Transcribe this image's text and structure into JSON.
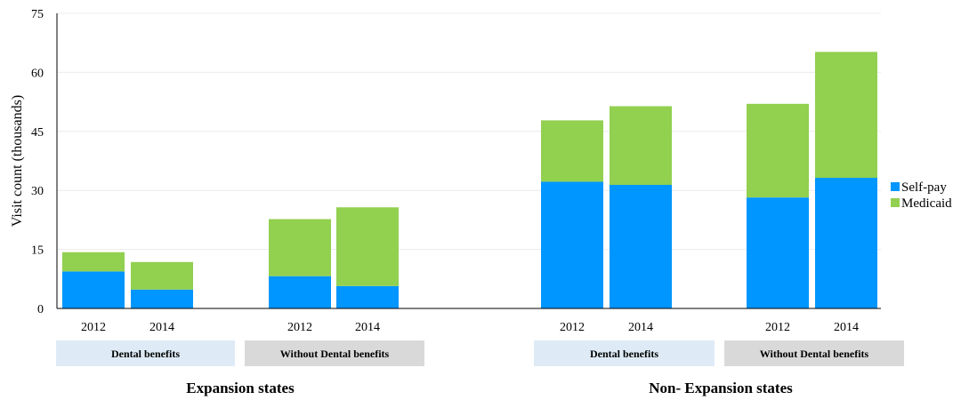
{
  "chart_data": {
    "type": "bar",
    "stacked": true,
    "ylabel": "Visit count  (thousands)",
    "ylim": [
      0,
      75
    ],
    "yticks": [
      "0",
      "15",
      "30",
      "45",
      "60",
      "75"
    ],
    "grid": true,
    "legend_position": "right",
    "series": [
      {
        "name": "Self-pay",
        "color": "#0096FF",
        "values": [
          9.4,
          4.8,
          8.2,
          5.7,
          32.2,
          31.4,
          28.2,
          33.2
        ]
      },
      {
        "name": "Medicaid",
        "color": "#92D050",
        "values": [
          4.9,
          7.0,
          14.5,
          20.0,
          15.6,
          20.0,
          23.8,
          32.0
        ]
      }
    ],
    "categories": [
      "2012",
      "2014",
      "2012",
      "2014",
      "2012",
      "2014",
      "2012",
      "2014"
    ],
    "groups": [
      {
        "label": "Dental benefits",
        "color": "#DEEBF7"
      },
      {
        "label": "Without Dental benefits",
        "color": "#D9D9D9"
      },
      {
        "label": "Dental benefits",
        "color": "#DEEBF7"
      },
      {
        "label": "Without Dental benefits",
        "color": "#D9D9D9"
      }
    ],
    "regions": [
      "Expansion states",
      "Non- Expansion states"
    ]
  }
}
